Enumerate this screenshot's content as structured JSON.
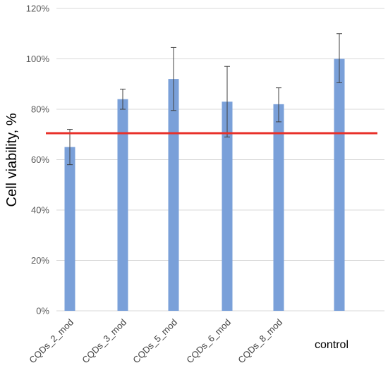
{
  "chart_data": {
    "type": "bar",
    "categories": [
      "CQDs_2_mod",
      "CQDs_3_mod",
      "CQDs_5_mod",
      "CQDs_6_mod",
      "CQDs_8_mod",
      "control"
    ],
    "values": [
      65,
      84,
      92,
      83,
      82,
      100
    ],
    "error_upper": [
      72,
      88,
      104.5,
      97,
      88.5,
      110
    ],
    "error_lower": [
      58,
      80,
      79.5,
      69,
      75,
      90.5
    ],
    "ylabel": "Cell viability, %",
    "xlabel": "",
    "ylim": [
      0,
      120
    ],
    "y_ticks": [
      0,
      20,
      40,
      60,
      80,
      100,
      120
    ],
    "y_tick_labels": [
      "0%",
      "20%",
      "40%",
      "60%",
      "80%",
      "100%",
      "120%"
    ],
    "reference_line": 70.5,
    "grid": true,
    "colors": {
      "bar": "#7aa0d9",
      "error_bar": "#404040",
      "reference_line": "#e8302a",
      "grid": "#d9d9d9"
    }
  }
}
